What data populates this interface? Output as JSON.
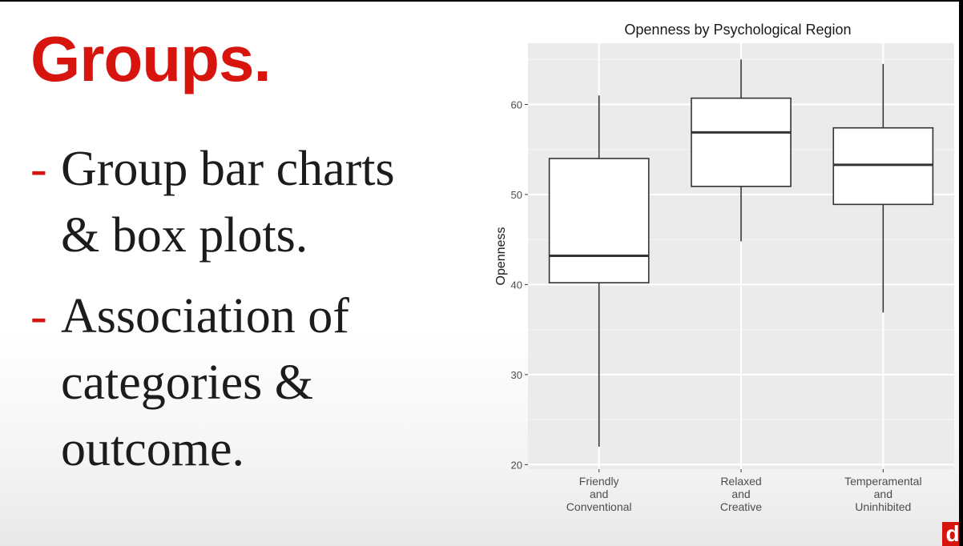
{
  "slide": {
    "title": "Groups.",
    "bullets": [
      {
        "dash": "-",
        "lines": [
          "Group bar charts",
          "& box plots."
        ]
      },
      {
        "dash": "-",
        "lines": [
          "Association of",
          "categories &",
          "outcome."
        ]
      }
    ],
    "logo_letter": "d"
  },
  "colors": {
    "accent": "#d7150e",
    "panel": "#ebebeb",
    "grid": "#ffffff"
  },
  "chart_data": {
    "type": "box",
    "title": "Openness by Psychological Region",
    "xlabel": "",
    "ylabel": "Openness",
    "ylim": [
      19.5,
      66.8
    ],
    "yticks": [
      20,
      30,
      40,
      50,
      60
    ],
    "grid": true,
    "categories": [
      {
        "label": [
          "Friendly",
          "and",
          "Conventional"
        ],
        "min": 22,
        "q1": 40.2,
        "median": 43.2,
        "q3": 54,
        "max": 61
      },
      {
        "label": [
          "Relaxed",
          "and",
          "Creative"
        ],
        "min": 44.8,
        "q1": 50.9,
        "median": 56.9,
        "q3": 60.7,
        "max": 65
      },
      {
        "label": [
          "Temperamental",
          "and",
          "Uninhibited"
        ],
        "min": 36.9,
        "q1": 48.9,
        "median": 53.3,
        "q3": 57.4,
        "max": 64.5
      }
    ]
  }
}
